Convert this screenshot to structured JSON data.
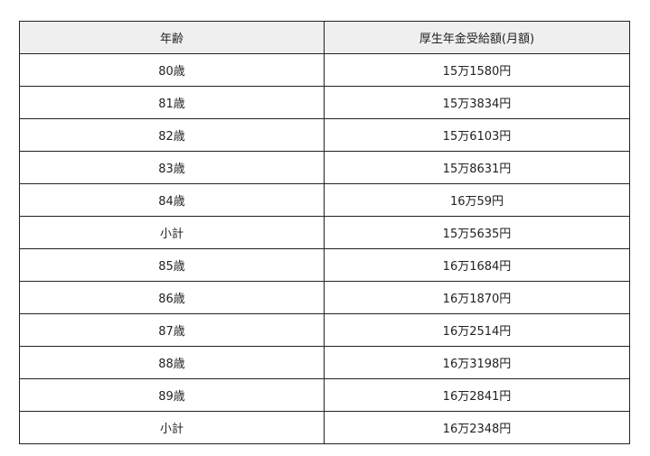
{
  "table": {
    "headers": [
      "年齢",
      "厚生年金受給額(月額)"
    ],
    "rows": [
      [
        "80歳",
        "15万1580円"
      ],
      [
        "81歳",
        "15万3834円"
      ],
      [
        "82歳",
        "15万6103円"
      ],
      [
        "83歳",
        "15万8631円"
      ],
      [
        "84歳",
        "16万59円"
      ],
      [
        "小計",
        "15万5635円"
      ],
      [
        "85歳",
        "16万1684円"
      ],
      [
        "86歳",
        "16万1870円"
      ],
      [
        "87歳",
        "16万2514円"
      ],
      [
        "88歳",
        "16万3198円"
      ],
      [
        "89歳",
        "16万2841円"
      ],
      [
        "小計",
        "16万2348円"
      ]
    ]
  }
}
